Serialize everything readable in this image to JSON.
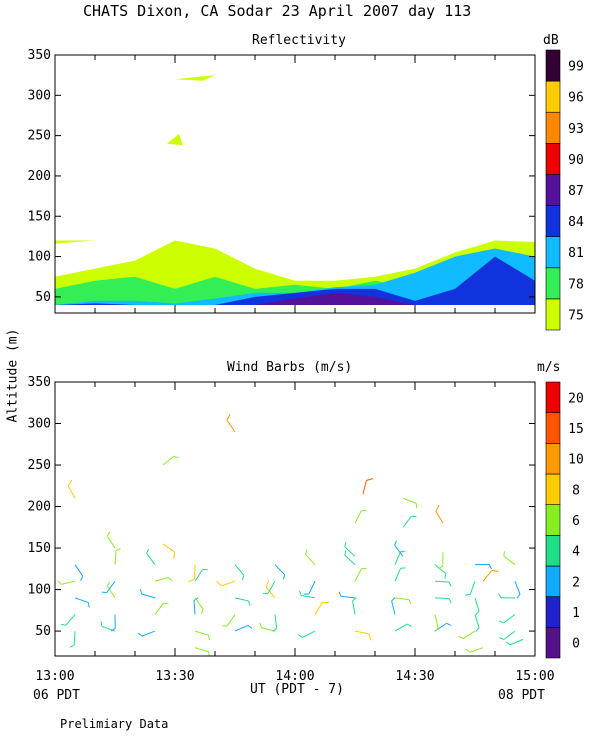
{
  "page_title": "CHATS Dixon, CA  Sodar  23 April 2007  day 113",
  "ylabel": "Altitude (m)",
  "xlabel": "UT  (PDT - 7)",
  "left_note": "06 PDT",
  "right_note": "08 PDT",
  "footer": "Prelimiary Data",
  "chart_data": [
    {
      "type": "heatmap",
      "title": "Reflectivity",
      "colorbar_unit": "dB",
      "colorbar_levels": [
        "75",
        "78",
        "81",
        "84",
        "87",
        "90",
        "93",
        "96",
        "99"
      ],
      "colorbar_colors": [
        "#ccff00",
        "#33ee55",
        "#11bbff",
        "#1133dd",
        "#551199",
        "#ee0000",
        "#ff8800",
        "#ffcc00",
        "#330033"
      ],
      "x_ticks": [
        "13:00",
        "13:30",
        "14:00",
        "14:30",
        "15:00"
      ],
      "y_ticks": [
        "50",
        "100",
        "150",
        "200",
        "250",
        "300",
        "350"
      ],
      "xlim": [
        "13:00",
        "15:00"
      ],
      "ylim": [
        30,
        350
      ],
      "cells_note": "Filled contour regions in dB; lowest level shading 75 dB dominates",
      "regions": [
        {
          "level": "75",
          "t": [
            0,
            10,
            20,
            30,
            40,
            50,
            60,
            70,
            80,
            90,
            100,
            110,
            120
          ],
          "alt_top": [
            75,
            85,
            95,
            120,
            110,
            85,
            70,
            70,
            75,
            85,
            105,
            120,
            118
          ]
        },
        {
          "level": "78",
          "t": [
            0,
            10,
            20,
            30,
            40,
            50,
            60,
            70,
            80,
            90,
            100,
            110,
            120
          ],
          "alt_top": [
            60,
            70,
            75,
            60,
            75,
            60,
            65,
            60,
            70,
            60,
            75,
            80,
            60
          ]
        },
        {
          "level": "81",
          "t": [
            0,
            10,
            20,
            30,
            40,
            50,
            60,
            70,
            80,
            90,
            100,
            110,
            120
          ],
          "alt_top": [
            40,
            45,
            45,
            42,
            48,
            55,
            55,
            62,
            65,
            80,
            100,
            110,
            100
          ]
        },
        {
          "level": "84",
          "t": [
            0,
            10,
            20,
            30,
            40,
            50,
            60,
            70,
            80,
            90,
            100,
            110,
            120
          ],
          "alt_top": [
            40,
            42,
            40,
            40,
            40,
            50,
            55,
            60,
            60,
            45,
            60,
            100,
            70
          ]
        },
        {
          "level": "87",
          "t": [
            0,
            10,
            20,
            30,
            40,
            50,
            60,
            70,
            80,
            90,
            100,
            110,
            120
          ],
          "alt_top": [
            40,
            40,
            40,
            40,
            40,
            40,
            48,
            55,
            50,
            40,
            40,
            40,
            40
          ]
        }
      ],
      "patches": [
        {
          "level": "75",
          "label": "upper layer near 320 m"
        },
        {
          "level": "75",
          "label": "patch near 245 m"
        }
      ]
    },
    {
      "type": "scatter",
      "title": "Wind Barbs (m/s)",
      "colorbar_unit": "m/s",
      "colorbar_levels": [
        "0",
        "1",
        "2",
        "4",
        "6",
        "8",
        "10",
        "15",
        "20"
      ],
      "colorbar_colors": [
        "#551188",
        "#2222cc",
        "#11aaff",
        "#22dd88",
        "#88ee22",
        "#ffcc00",
        "#ff9900",
        "#ff5500",
        "#ee0000"
      ],
      "x_ticks": [
        "13:00",
        "13:30",
        "14:00",
        "14:30",
        "15:00"
      ],
      "y_ticks": [
        "50",
        "100",
        "150",
        "200",
        "250",
        "300",
        "350"
      ],
      "xlim": [
        "13:00",
        "15:00"
      ],
      "ylim": [
        20,
        350
      ],
      "x_minutes": [
        5,
        15,
        25,
        35,
        45,
        55,
        65,
        75,
        85,
        95,
        105,
        115
      ],
      "barb_levels": [
        50,
        70,
        90,
        110,
        130
      ],
      "extra_barbs": [
        {
          "t": 5,
          "alt": 210,
          "speed": 8
        },
        {
          "t": 15,
          "alt": 150,
          "speed": 6
        },
        {
          "t": 27,
          "alt": 155,
          "speed": 8
        },
        {
          "t": 27,
          "alt": 250,
          "speed": 6
        },
        {
          "t": 45,
          "alt": 290,
          "speed": 10
        },
        {
          "t": 35,
          "alt": 30,
          "speed": 6
        },
        {
          "t": 75,
          "alt": 180,
          "speed": 6
        },
        {
          "t": 77,
          "alt": 215,
          "speed": 15
        },
        {
          "t": 75,
          "alt": 140,
          "speed": 4
        },
        {
          "t": 87,
          "alt": 210,
          "speed": 6
        },
        {
          "t": 87,
          "alt": 175,
          "speed": 4
        },
        {
          "t": 87,
          "alt": 140,
          "speed": 2
        },
        {
          "t": 97,
          "alt": 180,
          "speed": 10
        },
        {
          "t": 97,
          "alt": 145,
          "speed": 6
        },
        {
          "t": 107,
          "alt": 110,
          "speed": 10
        },
        {
          "t": 107,
          "alt": 30,
          "speed": 6
        },
        {
          "t": 117,
          "alt": 40,
          "speed": 4
        }
      ]
    }
  ]
}
